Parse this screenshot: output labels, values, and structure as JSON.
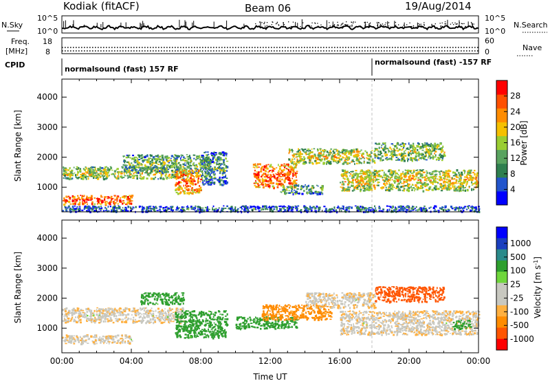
{
  "header": {
    "station": "Kodiak (fitACF)",
    "beam": "Beam 06",
    "date": "19/Aug/2014"
  },
  "top_panels": {
    "nsky_label": "N.Sky",
    "nsearch_label": "N.Search",
    "nsky_ticks": [
      "10^5",
      "10^0"
    ],
    "nsearch_ticks": [
      "10^5",
      "10^0"
    ],
    "freq_label_1": "Freq.",
    "freq_label_2": "[MHz]",
    "freq_ticks": [
      "18",
      "8"
    ],
    "nave_label": "Nave",
    "nave_ticks": [
      "60",
      "0"
    ],
    "cpid_label": "CPID",
    "cpid_1": "normalsound (fast) 157 RF",
    "cpid_2": "normalsound (fast) -157 RF"
  },
  "colors": {
    "power_scale": [
      "#0000ff",
      "#2255cc",
      "#2f7f4f",
      "#59a35f",
      "#9acd32",
      "#f5c000",
      "#ff8c00",
      "#ff5000",
      "#ff0000"
    ],
    "velocity_scale": [
      "#ff0000",
      "#ff5500",
      "#ff8c00",
      "#ffb040",
      "#c8c8c0",
      "#c8c8c0",
      "#6fd63c",
      "#2e9f2e",
      "#2a8a8a",
      "#1a3fbf",
      "#0000ff"
    ],
    "guide_line": "#c0c0c0"
  },
  "chart_data": [
    {
      "type": "heatmap",
      "title": "Power",
      "xlabel": "",
      "ylabel": "Slant Range [km]",
      "x_ticks": [
        "00:00",
        "04:00",
        "08:00",
        "12:00",
        "16:00",
        "20:00",
        "00:00"
      ],
      "y_ticks": [
        1000,
        2000,
        3000,
        4000
      ],
      "ylim": [
        180,
        4600
      ],
      "xlim_hours": [
        0,
        24
      ],
      "colorbar": {
        "label": "Power [dB]",
        "ticks": [
          4,
          8,
          12,
          16,
          20,
          24,
          28
        ],
        "range": [
          0,
          32
        ]
      },
      "blobs": [
        {
          "hours": [
            0.0,
            4.0
          ],
          "range_km": [
            450,
            750
          ],
          "value_db": 29
        },
        {
          "hours": [
            0.0,
            7.0
          ],
          "range_km": [
            1300,
            1700
          ],
          "value_db": 18
        },
        {
          "hours": [
            3.5,
            8.5
          ],
          "range_km": [
            1500,
            2100
          ],
          "value_db": 14
        },
        {
          "hours": [
            6.5,
            8.0
          ],
          "range_km": [
            800,
            1600
          ],
          "value_db": 26
        },
        {
          "hours": [
            8.0,
            9.5
          ],
          "range_km": [
            1100,
            2200
          ],
          "value_db": 12
        },
        {
          "hours": [
            11.0,
            13.5
          ],
          "range_km": [
            1000,
            1800
          ],
          "value_db": 27
        },
        {
          "hours": [
            12.5,
            15.0
          ],
          "range_km": [
            800,
            1100
          ],
          "value_db": 14
        },
        {
          "hours": [
            13.0,
            18.0
          ],
          "range_km": [
            1800,
            2300
          ],
          "value_db": 19
        },
        {
          "hours": [
            16.0,
            24.0
          ],
          "range_km": [
            900,
            1600
          ],
          "value_db": 20
        },
        {
          "hours": [
            18.0,
            22.0
          ],
          "range_km": [
            1900,
            2500
          ],
          "value_db": 16
        },
        {
          "hours": [
            0.0,
            24.0
          ],
          "range_km": [
            200,
            400
          ],
          "value_db": 8
        }
      ]
    },
    {
      "type": "heatmap",
      "title": "Velocity",
      "xlabel": "Time UT",
      "ylabel": "Slant Range [km]",
      "x_ticks": [
        "00:00",
        "04:00",
        "08:00",
        "12:00",
        "16:00",
        "20:00",
        "00:00"
      ],
      "y_ticks": [
        1000,
        2000,
        3000,
        4000
      ],
      "ylim": [
        180,
        4600
      ],
      "xlim_hours": [
        0,
        24
      ],
      "colorbar": {
        "label": "Velocity [m s^-1]",
        "ticks": [
          1000,
          500,
          100,
          25,
          -25,
          -100,
          -500,
          -1000
        ]
      },
      "blobs": [
        {
          "hours": [
            0.0,
            4.0
          ],
          "range_km": [
            500,
            800
          ],
          "value_ms": 0
        },
        {
          "hours": [
            0.0,
            7.0
          ],
          "range_km": [
            1200,
            1700
          ],
          "value_ms": 0
        },
        {
          "hours": [
            4.5,
            7.0
          ],
          "range_km": [
            1800,
            2200
          ],
          "value_ms": 150
        },
        {
          "hours": [
            6.5,
            9.5
          ],
          "range_km": [
            700,
            1600
          ],
          "value_ms": 150
        },
        {
          "hours": [
            10.0,
            13.5
          ],
          "range_km": [
            1000,
            1400
          ],
          "value_ms": 150
        },
        {
          "hours": [
            11.5,
            15.5
          ],
          "range_km": [
            1300,
            1800
          ],
          "value_ms": -120
        },
        {
          "hours": [
            14.0,
            18.0
          ],
          "range_km": [
            1700,
            2200
          ],
          "value_ms": 0
        },
        {
          "hours": [
            16.0,
            24.0
          ],
          "range_km": [
            800,
            1600
          ],
          "value_ms": 0
        },
        {
          "hours": [
            18.0,
            22.0
          ],
          "range_km": [
            1900,
            2400
          ],
          "value_ms": -600
        },
        {
          "hours": [
            22.5,
            23.5
          ],
          "range_km": [
            1000,
            1300
          ],
          "value_ms": 150
        }
      ]
    }
  ]
}
